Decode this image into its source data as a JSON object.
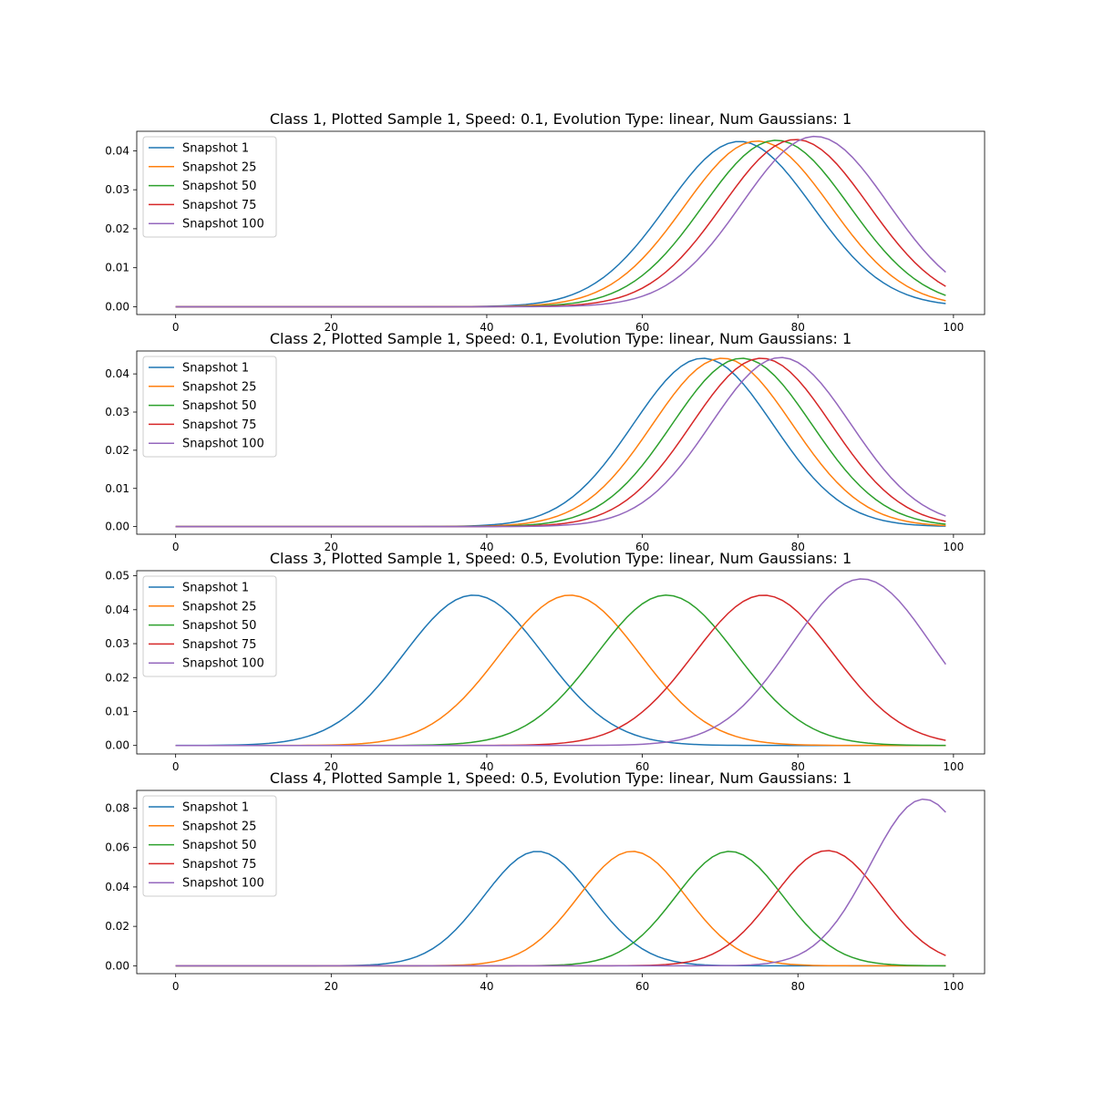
{
  "chart_data": [
    {
      "type": "line",
      "title": "Class 1, Plotted Sample 1, Speed: 0.1, Evolution Type: linear, Num Gaussians: 1",
      "xlim": [
        -5,
        104
      ],
      "ylim": [
        -0.002,
        0.045
      ],
      "xticks": [
        0,
        20,
        40,
        60,
        80,
        100
      ],
      "yticks": [
        0.0,
        0.01,
        0.02,
        0.03,
        0.04
      ],
      "ytick_decimals": 2,
      "legend_position": "upper left",
      "grid": false,
      "series": [
        {
          "name": "Snapshot 1",
          "color": "#1f77b4",
          "gaussian": {
            "center": 72.5,
            "sigma": 9.4,
            "amplitude": 0.0424
          }
        },
        {
          "name": "Snapshot 25",
          "color": "#ff7f0e",
          "gaussian": {
            "center": 74.8,
            "sigma": 9.4,
            "amplitude": 0.0425
          }
        },
        {
          "name": "Snapshot 50",
          "color": "#2ca02c",
          "gaussian": {
            "center": 77.2,
            "sigma": 9.4,
            "amplitude": 0.0427
          }
        },
        {
          "name": "Snapshot 75",
          "color": "#d62728",
          "gaussian": {
            "center": 79.7,
            "sigma": 9.4,
            "amplitude": 0.0429
          }
        },
        {
          "name": "Snapshot 100",
          "color": "#9467bd",
          "gaussian": {
            "center": 82.2,
            "sigma": 9.4,
            "amplitude": 0.0437
          }
        }
      ],
      "x_values": "integers 0 to 99"
    },
    {
      "type": "line",
      "title": "Class 2, Plotted Sample 1, Speed: 0.1, Evolution Type: linear, Num Gaussians: 1",
      "xlim": [
        -5,
        104
      ],
      "ylim": [
        -0.002,
        0.046
      ],
      "xticks": [
        0,
        20,
        40,
        60,
        80,
        100
      ],
      "yticks": [
        0.0,
        0.01,
        0.02,
        0.03,
        0.04
      ],
      "ytick_decimals": 2,
      "legend_position": "upper left",
      "grid": false,
      "series": [
        {
          "name": "Snapshot 1",
          "color": "#1f77b4",
          "gaussian": {
            "center": 67.8,
            "sigma": 9.0,
            "amplitude": 0.0441
          }
        },
        {
          "name": "Snapshot 25",
          "color": "#ff7f0e",
          "gaussian": {
            "center": 70.3,
            "sigma": 9.0,
            "amplitude": 0.0441
          }
        },
        {
          "name": "Snapshot 50",
          "color": "#2ca02c",
          "gaussian": {
            "center": 72.8,
            "sigma": 9.0,
            "amplitude": 0.0441
          }
        },
        {
          "name": "Snapshot 75",
          "color": "#d62728",
          "gaussian": {
            "center": 75.3,
            "sigma": 9.0,
            "amplitude": 0.0441
          }
        },
        {
          "name": "Snapshot 100",
          "color": "#9467bd",
          "gaussian": {
            "center": 77.8,
            "sigma": 9.0,
            "amplitude": 0.0443
          }
        }
      ],
      "x_values": "integers 0 to 99"
    },
    {
      "type": "line",
      "title": "Class 3, Plotted Sample 1, Speed: 0.5, Evolution Type: linear, Num Gaussians: 1",
      "xlim": [
        -5,
        104
      ],
      "ylim": [
        -0.0025,
        0.0515
      ],
      "xticks": [
        0,
        20,
        40,
        60,
        80,
        100
      ],
      "yticks": [
        0.0,
        0.01,
        0.02,
        0.03,
        0.04,
        0.05
      ],
      "ytick_decimals": 2,
      "legend_position": "upper left",
      "grid": false,
      "series": [
        {
          "name": "Snapshot 1",
          "color": "#1f77b4",
          "gaussian": {
            "center": 38.3,
            "sigma": 9.0,
            "amplitude": 0.0443
          }
        },
        {
          "name": "Snapshot 25",
          "color": "#ff7f0e",
          "gaussian": {
            "center": 50.7,
            "sigma": 9.0,
            "amplitude": 0.0443
          }
        },
        {
          "name": "Snapshot 50",
          "color": "#2ca02c",
          "gaussian": {
            "center": 63.1,
            "sigma": 9.0,
            "amplitude": 0.0443
          }
        },
        {
          "name": "Snapshot 75",
          "color": "#d62728",
          "gaussian": {
            "center": 75.6,
            "sigma": 9.0,
            "amplitude": 0.0443
          }
        },
        {
          "name": "Snapshot 100",
          "color": "#9467bd",
          "gaussian": {
            "center": 88.2,
            "sigma": 9.0,
            "amplitude": 0.0491
          }
        }
      ],
      "x_values": "integers 0 to 99"
    },
    {
      "type": "line",
      "title": "Class 4, Plotted Sample 1, Speed: 0.5, Evolution Type: linear, Num Gaussians: 1",
      "xlim": [
        -5,
        104
      ],
      "ylim": [
        -0.004,
        0.089
      ],
      "xticks": [
        0,
        20,
        40,
        60,
        80,
        100
      ],
      "yticks": [
        0.0,
        0.02,
        0.04,
        0.06,
        0.08
      ],
      "ytick_decimals": 2,
      "legend_position": "upper left",
      "grid": false,
      "series": [
        {
          "name": "Snapshot 1",
          "color": "#1f77b4",
          "gaussian": {
            "center": 46.5,
            "sigma": 6.9,
            "amplitude": 0.0581
          }
        },
        {
          "name": "Snapshot 25",
          "color": "#ff7f0e",
          "gaussian": {
            "center": 58.7,
            "sigma": 6.9,
            "amplitude": 0.0581
          }
        },
        {
          "name": "Snapshot 50",
          "color": "#2ca02c",
          "gaussian": {
            "center": 71.2,
            "sigma": 6.9,
            "amplitude": 0.0581
          }
        },
        {
          "name": "Snapshot 75",
          "color": "#d62728",
          "gaussian": {
            "center": 83.8,
            "sigma": 6.9,
            "amplitude": 0.0585
          }
        },
        {
          "name": "Snapshot 100",
          "color": "#9467bd",
          "gaussian": {
            "center": 96.2,
            "sigma": 6.9,
            "amplitude": 0.0846
          }
        }
      ],
      "x_values": "integers 0 to 99"
    }
  ]
}
